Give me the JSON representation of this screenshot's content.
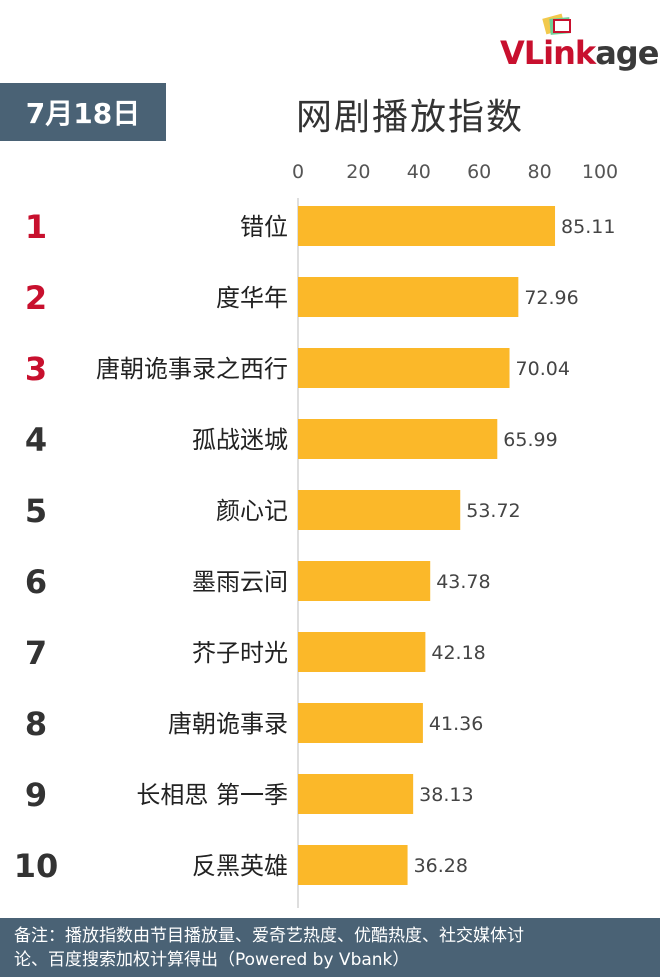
{
  "logo": {
    "prefix": "VLink",
    "suffix": "age"
  },
  "date_badge": "7月18日",
  "title": "网剧播放指数",
  "colors": {
    "bar": "#fbb829",
    "top_rank": "#c8102e",
    "rank": "#333333",
    "badge": "#4a6275"
  },
  "chart_data": {
    "type": "bar",
    "orientation": "horizontal",
    "title": "网剧播放指数",
    "ranks": [
      "1",
      "2",
      "3",
      "4",
      "5",
      "6",
      "7",
      "8",
      "9",
      "10"
    ],
    "categories": [
      "错位",
      "度华年",
      "唐朝诡事录之西行",
      "孤战迷城",
      "颜心记",
      "墨雨云间",
      "芥子时光",
      "唐朝诡事录",
      "长相思 第一季",
      "反黑英雄"
    ],
    "values": [
      85.11,
      72.96,
      70.04,
      65.99,
      53.72,
      43.78,
      42.18,
      41.36,
      38.13,
      36.28
    ],
    "value_labels": [
      "85.11",
      "72.96",
      "70.04",
      "65.99",
      "53.72",
      "43.78",
      "42.18",
      "41.36",
      "38.13",
      "36.28"
    ],
    "xlim": [
      0,
      100
    ],
    "ticks": [
      "0",
      "20",
      "40",
      "60",
      "80",
      "100"
    ],
    "tick_values": [
      0,
      20,
      40,
      60,
      80,
      100
    ],
    "grid": false,
    "legend": "none"
  },
  "footer": {
    "line1": "备注：播放指数由节目播放量、爱奇艺热度、优酷热度、社交媒体讨",
    "line2": "论、百度搜索加权计算得出（Powered by Vbank）"
  }
}
